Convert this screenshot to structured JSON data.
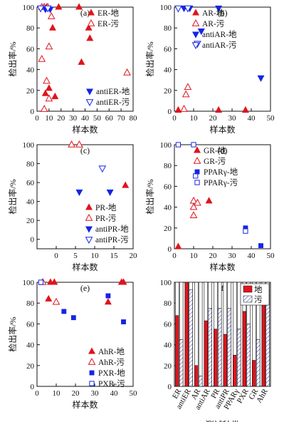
{
  "colors": {
    "red": "#e0141c",
    "blue": "#1424e6",
    "black": "#111111"
  },
  "chart_data": [
    {
      "type": "scatter",
      "panel_label": "(a)",
      "xlabel": "样本数",
      "ylabel": "检出率/%",
      "xlim": [
        0,
        80
      ],
      "ylim": [
        0,
        100
      ],
      "xticks": [
        0,
        10,
        20,
        30,
        40,
        50,
        60,
        70,
        80
      ],
      "yticks": [
        0,
        20,
        40,
        60,
        80,
        100
      ],
      "series": [
        {
          "name": "ER-地",
          "marker": "tri-up-filled",
          "color": "red",
          "points": [
            [
              8,
              100
            ],
            [
              18,
              100
            ],
            [
              35,
              100
            ],
            [
              13,
              80
            ],
            [
              43,
              80
            ],
            [
              44,
              70
            ],
            [
              37,
              47
            ],
            [
              10,
              22
            ],
            [
              7,
              17
            ],
            [
              15,
              14
            ]
          ]
        },
        {
          "name": "ER-污",
          "marker": "tri-up-open",
          "color": "red",
          "points": [
            [
              4,
              100
            ],
            [
              6,
              100
            ],
            [
              9,
              100
            ],
            [
              12,
              91
            ],
            [
              10,
              62
            ],
            [
              4,
              50
            ],
            [
              8,
              29
            ],
            [
              10,
              12
            ],
            [
              6,
              2
            ],
            [
              75,
              37
            ]
          ]
        },
        {
          "name": "antiER-地",
          "marker": "tri-down-filled",
          "color": "blue",
          "points": [
            [
              7,
              98
            ],
            [
              11,
              98
            ]
          ]
        },
        {
          "name": "antiER-污",
          "marker": "tri-down-open",
          "color": "blue",
          "points": [
            [
              3,
              99
            ],
            [
              9,
              99
            ]
          ]
        }
      ]
    },
    {
      "type": "scatter",
      "panel_label": "(b)",
      "xlabel": "样本数",
      "ylabel": "检出率/%",
      "xlim": [
        0,
        50
      ],
      "ylim": [
        0,
        100
      ],
      "xticks": [
        0,
        10,
        20,
        30,
        40,
        50
      ],
      "yticks": [
        0,
        20,
        40,
        60,
        80,
        100
      ],
      "series": [
        {
          "name": "AR-地",
          "marker": "tri-up-filled",
          "color": "red",
          "points": [
            [
              2,
              1
            ],
            [
              23,
              1
            ],
            [
              37,
              1
            ]
          ]
        },
        {
          "name": "AR-污",
          "marker": "tri-up-open",
          "color": "red",
          "points": [
            [
              5,
              2
            ],
            [
              6,
              16
            ],
            [
              7,
              23
            ]
          ]
        },
        {
          "name": "antiAR-地",
          "marker": "tri-down-filled",
          "color": "blue",
          "points": [
            [
              5,
              99
            ],
            [
              8,
              99
            ],
            [
              14,
              77
            ],
            [
              23,
              99
            ],
            [
              45,
              32
            ]
          ]
        },
        {
          "name": "antiAR-污",
          "marker": "tri-down-open",
          "color": "blue",
          "points": [
            [
              2,
              99
            ],
            [
              7,
              99
            ],
            [
              12,
              65
            ]
          ]
        }
      ]
    },
    {
      "type": "scatter",
      "panel_label": "(c)",
      "xlabel": "样本数",
      "ylabel": "检出率/%",
      "xlim": [
        -5,
        20
      ],
      "ylim": [
        -10,
        100
      ],
      "xticks": [
        0,
        5,
        10,
        15,
        20
      ],
      "yticks": [
        0,
        20,
        40,
        60,
        80,
        100
      ],
      "series": [
        {
          "name": "PR-地",
          "marker": "tri-up-filled",
          "color": "red",
          "points": [
            [
              18,
              57
            ]
          ]
        },
        {
          "name": "PR-污",
          "marker": "tri-up-open",
          "color": "red",
          "points": [
            [
              4,
              100
            ],
            [
              6,
              100
            ]
          ]
        },
        {
          "name": "antiPR-地",
          "marker": "tri-down-filled",
          "color": "blue",
          "points": [
            [
              6,
              50
            ],
            [
              14,
              50
            ]
          ]
        },
        {
          "name": "antiPR-污",
          "marker": "tri-down-open",
          "color": "blue",
          "points": [
            [
              12,
              75
            ]
          ]
        }
      ]
    },
    {
      "type": "scatter",
      "panel_label": "(d)",
      "xlabel": "样本数",
      "ylabel": "检出率/%",
      "xlim": [
        0,
        50
      ],
      "ylim": [
        0,
        100
      ],
      "xticks": [
        0,
        10,
        20,
        30,
        40,
        50
      ],
      "yticks": [
        0,
        20,
        40,
        60,
        80,
        100
      ],
      "series": [
        {
          "name": "GR-地",
          "marker": "tri-up-filled",
          "color": "red",
          "points": [
            [
              2,
              2
            ],
            [
              18,
              46
            ]
          ]
        },
        {
          "name": "GR-污",
          "marker": "tri-up-open",
          "color": "red",
          "points": [
            [
              10,
              46
            ],
            [
              10,
              40
            ],
            [
              12,
              44
            ],
            [
              10,
              32
            ]
          ]
        },
        {
          "name": "PPARγ-地",
          "marker": "square-filled",
          "color": "blue",
          "points": [
            [
              2,
              100
            ],
            [
              37,
              20
            ],
            [
              45,
              3
            ]
          ]
        },
        {
          "name": "PPARγ-污",
          "marker": "square-open",
          "color": "blue",
          "points": [
            [
              2,
              100
            ],
            [
              10,
              100
            ],
            [
              11,
              70
            ],
            [
              37,
              17
            ]
          ]
        }
      ]
    },
    {
      "type": "scatter",
      "panel_label": "(e)",
      "xlabel": "样本数",
      "ylabel": "检出率/%",
      "xlim": [
        0,
        50
      ],
      "ylim": [
        0,
        100
      ],
      "xticks": [
        0,
        10,
        20,
        30,
        40,
        50
      ],
      "yticks": [
        0,
        20,
        40,
        60,
        80,
        100
      ],
      "series": [
        {
          "name": "AhR-地",
          "marker": "tri-up-filled",
          "color": "red",
          "points": [
            [
              7,
              100
            ],
            [
              9,
              100
            ],
            [
              44,
              100
            ],
            [
              45,
              100
            ],
            [
              6,
              84
            ],
            [
              37,
              81
            ]
          ]
        },
        {
          "name": "AhR-污",
          "marker": "tri-up-open",
          "color": "red",
          "points": [
            [
              3,
              100
            ],
            [
              10,
              81
            ]
          ]
        },
        {
          "name": "PXR-地",
          "marker": "square-filled",
          "color": "blue",
          "points": [
            [
              14,
              72
            ],
            [
              19,
              66
            ],
            [
              37,
              87
            ],
            [
              45,
              62
            ]
          ]
        },
        {
          "name": "PXR-污",
          "marker": "square-open",
          "color": "blue",
          "points": [
            [
              2,
              100
            ]
          ]
        }
      ]
    },
    {
      "type": "bar",
      "panel_label": "(f)",
      "xlabel": "测试种类",
      "ylabel": "",
      "ylim": [
        0,
        100
      ],
      "yticks": [
        0,
        20,
        40,
        60,
        80,
        100
      ],
      "categories": [
        "ER",
        "antiER",
        "AR",
        "antiAR",
        "PR",
        "antiPR",
        "PPARγ",
        "PXR",
        "GR",
        "AhR"
      ],
      "series": [
        {
          "name": "地",
          "fill": "red-solid",
          "values": [
            68,
            100,
            20,
            63,
            55,
            50,
            30,
            72,
            25,
            95
          ]
        },
        {
          "name": "污",
          "fill": "hatched",
          "values": [
            45,
            93,
            10,
            75,
            75,
            75,
            55,
            60,
            45,
            92
          ]
        }
      ],
      "stack_total": 100
    }
  ]
}
